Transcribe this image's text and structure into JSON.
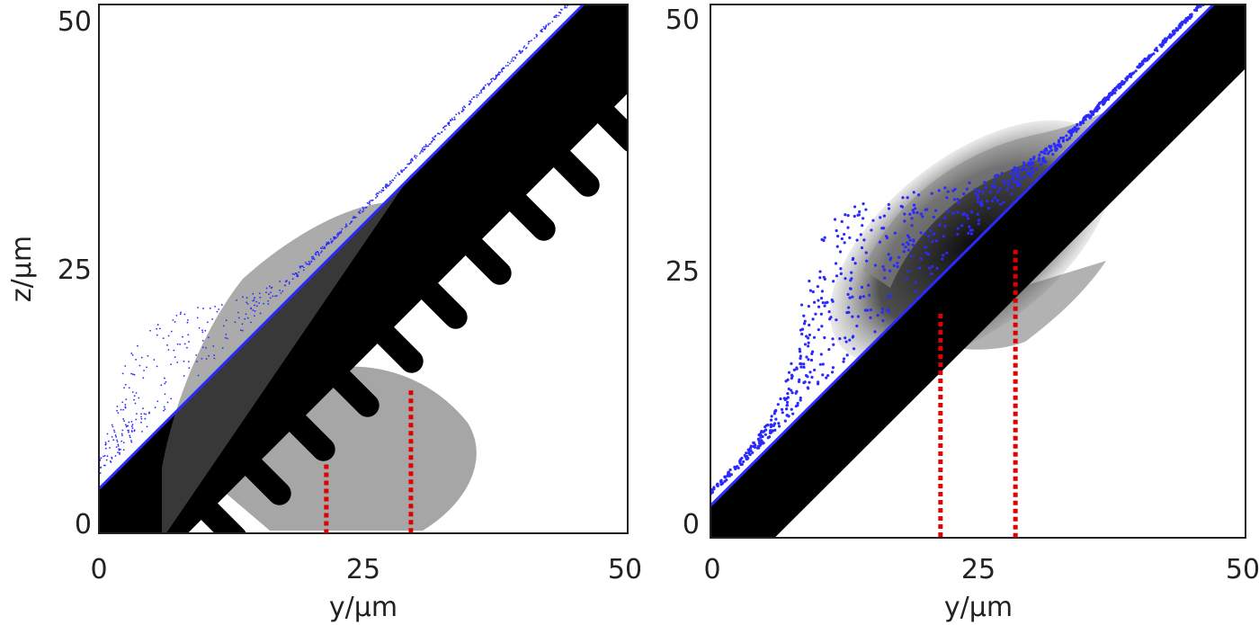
{
  "chart_data": [
    {
      "type": "scatter",
      "panel": "left",
      "xlabel": "y/μm",
      "ylabel": "z/μm",
      "xlim": [
        0,
        50
      ],
      "ylim": [
        0,
        50
      ],
      "x_ticks": [
        "0",
        "25",
        "50"
      ],
      "y_ticks": [
        "0",
        "25",
        "50"
      ],
      "grid": false,
      "colors": {
        "particles": "#000000",
        "surface": "#2a2aff",
        "markers": "#e00000"
      },
      "wall": {
        "from": [
          0,
          0
        ],
        "to": [
          50,
          50
        ]
      },
      "teeth": {
        "count": 12,
        "offset": 3.5,
        "length": 4.2
      },
      "markers": [
        {
          "y": 21.5,
          "z_top": 6.5
        },
        {
          "y": 29.5,
          "z_top": 13.5
        }
      ]
    },
    {
      "type": "scatter",
      "panel": "right",
      "xlabel": "y/μm",
      "ylabel": "",
      "xlim": [
        0,
        50
      ],
      "ylim": [
        0,
        50
      ],
      "x_ticks": [
        "0",
        "25",
        "50"
      ],
      "y_ticks": [
        "0",
        "25",
        "50"
      ],
      "grid": false,
      "colors": {
        "particles": "#000000",
        "surface": "#2a2aff",
        "markers": "#e00000"
      },
      "wall": {
        "from": [
          0,
          0
        ],
        "to": [
          50,
          50
        ]
      },
      "markers": [
        {
          "y": 21.5,
          "z_top": 21
        },
        {
          "y": 28.5,
          "z_top": 27
        }
      ]
    }
  ]
}
